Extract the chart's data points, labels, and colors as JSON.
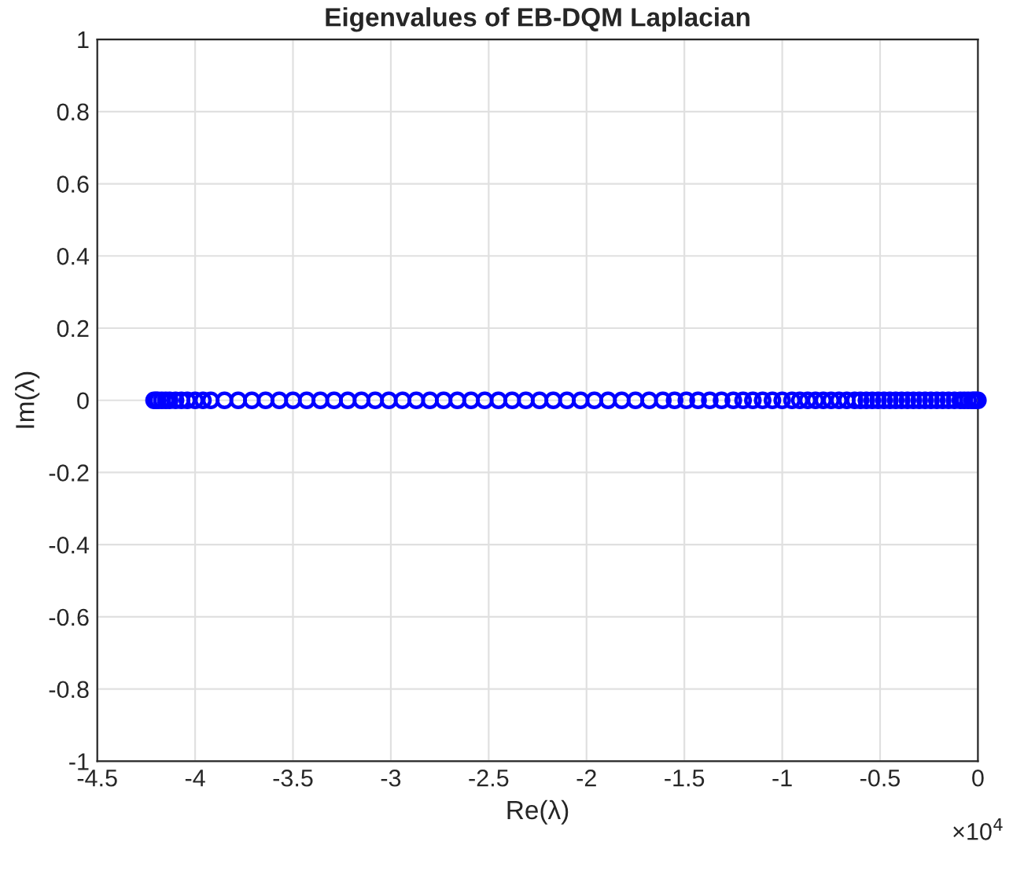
{
  "chart_data": {
    "type": "scatter",
    "title": "Eigenvalues of EB-DQM Laplacian",
    "xlabel": "Re(λ)",
    "ylabel": "Im(λ)",
    "annotations": [
      "×10$^{4}$"
    ],
    "x": [
      -4.21,
      -4.2,
      -4.19,
      -4.17,
      -4.15,
      -4.13,
      -4.1,
      -4.07,
      -4.04,
      -4.0,
      -3.96,
      -3.92,
      -3.85,
      -3.78,
      -3.71,
      -3.64,
      -3.57,
      -3.5,
      -3.43,
      -3.36,
      -3.29,
      -3.22,
      -3.15,
      -3.08,
      -3.01,
      -2.94,
      -2.87,
      -2.8,
      -2.73,
      -2.66,
      -2.59,
      -2.52,
      -2.45,
      -2.38,
      -2.31,
      -2.24,
      -2.17,
      -2.1,
      -2.03,
      -1.96,
      -1.89,
      -1.82,
      -1.75,
      -1.68,
      -1.61,
      -1.55,
      -1.49,
      -1.43,
      -1.37,
      -1.31,
      -1.25,
      -1.2,
      -1.15,
      -1.1,
      -1.05,
      -1.0,
      -0.95,
      -0.91,
      -0.87,
      -0.83,
      -0.79,
      -0.75,
      -0.71,
      -0.67,
      -0.63,
      -0.6,
      -0.57,
      -0.54,
      -0.51,
      -0.48,
      -0.45,
      -0.42,
      -0.39,
      -0.36,
      -0.33,
      -0.3,
      -0.27,
      -0.24,
      -0.21,
      -0.18,
      -0.15,
      -0.12,
      -0.09,
      -0.07,
      -0.05,
      -0.03,
      -0.02,
      -0.01,
      0
    ],
    "series": [
      {
        "color": "#0000ff",
        "values": [
          0,
          0,
          0,
          0,
          0,
          0,
          0,
          0,
          0,
          0,
          0,
          0,
          0,
          0,
          0,
          0,
          0,
          0,
          0,
          0,
          0,
          0,
          0,
          0,
          0,
          0,
          0,
          0,
          0,
          0,
          0,
          0,
          0,
          0,
          0,
          0,
          0,
          0,
          0,
          0,
          0,
          0,
          0,
          0,
          0,
          0,
          0,
          0,
          0,
          0,
          0,
          0,
          0,
          0,
          0,
          0,
          0,
          0,
          0,
          0,
          0,
          0,
          0,
          0,
          0,
          0,
          0,
          0,
          0,
          0,
          0,
          0,
          0,
          0,
          0,
          0,
          0,
          0,
          0,
          0,
          0,
          0,
          0,
          0,
          0,
          0,
          0,
          0,
          0
        ]
      }
    ],
    "marker": "circle",
    "grid": true,
    "xlim": [
      -4.5,
      0
    ],
    "xticks": [
      -4.5,
      -4,
      -3.5,
      -3,
      -2.5,
      -2,
      -1.5,
      -1,
      -0.5,
      0
    ],
    "ylim": [
      -1,
      1
    ],
    "yticks": [
      -1,
      -0.8,
      -0.6,
      -0.4,
      -0.2,
      0,
      0.2,
      0.4,
      0.6,
      0.8,
      1
    ]
  }
}
